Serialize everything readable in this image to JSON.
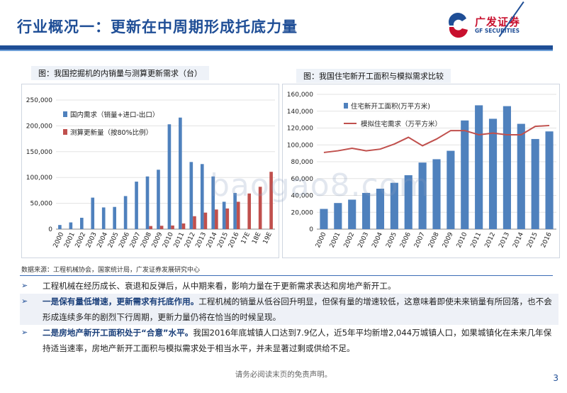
{
  "header": {
    "title": "行业概况一：更新在中周期形成托底力量",
    "logo_cn": "广发证券",
    "logo_en": "GF SECURITIES"
  },
  "left_chart": {
    "caption": "图：我国挖掘机的内销量与测算更新需求（台）",
    "chart_data": {
      "type": "bar",
      "categories": [
        "2000",
        "2001",
        "2002",
        "2003",
        "2004",
        "2005",
        "2006",
        "2007",
        "2008",
        "2009",
        "2010",
        "2011",
        "2012",
        "2013",
        "2014",
        "2015",
        "2016",
        "17E",
        "18E",
        "19E"
      ],
      "series": [
        {
          "name": "国内需求（销量+进口-出口）",
          "values": [
            8000,
            13000,
            22000,
            61000,
            42000,
            43000,
            64000,
            92000,
            102000,
            115000,
            203000,
            216000,
            130000,
            126000,
            102000,
            53000,
            70000,
            null,
            null,
            null
          ],
          "color": "#4f81bd"
        },
        {
          "name": "测算更新量（按80%比例）",
          "values": [
            null,
            null,
            null,
            null,
            null,
            null,
            null,
            null,
            6000,
            6500,
            7000,
            11000,
            25000,
            32000,
            38000,
            40000,
            53000,
            69000,
            82000,
            111000
          ],
          "color": "#c0504d"
        }
      ],
      "ylim": [
        0,
        250000
      ],
      "yticks": [
        "0",
        "50,000",
        "100,000",
        "150,000",
        "200,000",
        "250,000"
      ],
      "ytick_values": [
        0,
        50000,
        100000,
        150000,
        200000,
        250000
      ],
      "legend": "top-left"
    }
  },
  "right_chart": {
    "caption": "图：我国住宅新开工面积与模拟需求比较",
    "chart_data": {
      "type": "bar",
      "categories": [
        "2000",
        "2001",
        "2002",
        "2003",
        "2004",
        "2005",
        "2006",
        "2007",
        "2008",
        "2009",
        "2010",
        "2011",
        "2012",
        "2013",
        "2014",
        "2015",
        "2016"
      ],
      "series": [
        {
          "name": "住宅新开工面积(万平方米)",
          "type": "bar",
          "values": [
            24000,
            31000,
            35000,
            43000,
            48000,
            55000,
            64000,
            79000,
            83000,
            93000,
            129000,
            147000,
            131000,
            146000,
            125000,
            107000,
            116000
          ],
          "color": "#4f81bd"
        },
        {
          "name": "模拟住宅需求（万平方米）",
          "type": "line",
          "values": [
            91000,
            93000,
            96000,
            93000,
            95000,
            101000,
            109000,
            99000,
            107000,
            117000,
            117000,
            112000,
            114000,
            112000,
            112000,
            122000,
            123000
          ],
          "color": "#c0504d"
        }
      ],
      "ylim": [
        0,
        160000
      ],
      "yticks": [
        "0",
        "20,000",
        "40,000",
        "60,000",
        "80,000",
        "100,000",
        "120,000",
        "140,000",
        "160,000"
      ],
      "ytick_values": [
        0,
        20000,
        40000,
        60000,
        80000,
        100000,
        120000,
        140000,
        160000
      ],
      "legend": "top-left"
    }
  },
  "source": "数据来源：工程机械协会，国家统计局，广发证券发展研究中心",
  "bullets": [
    {
      "plain": "工程机械在经历成长、衰退和反弹后，从中期来看，影响力量在于更新需求表达和房地产新开工。",
      "bold": ""
    },
    {
      "bold": "一是保有量低增速，更新需求有托底作用。",
      "plain": "工程机械的销量从低谷回升明显，但保有量的增速较低，这意味着即使未来销量有所回落，也不会形成连续多年的剧烈下行周期，更新力量仍将在恰当的时候呈现。"
    },
    {
      "bold": "二是房地产新开工面积处于“合意”水平。",
      "plain": "我国2016年底城镇人口达到7.9亿人，近5年平均新增2,044万城镇人口，如果城镇化在未来几年保持适当速率，房地产新开工面积与模拟需求处于相当水平，并未显著过剩或供给不足。"
    }
  ],
  "footer": "请务必阅读末页的免责声明。",
  "page_number": "3",
  "watermark": "baogao8.com"
}
